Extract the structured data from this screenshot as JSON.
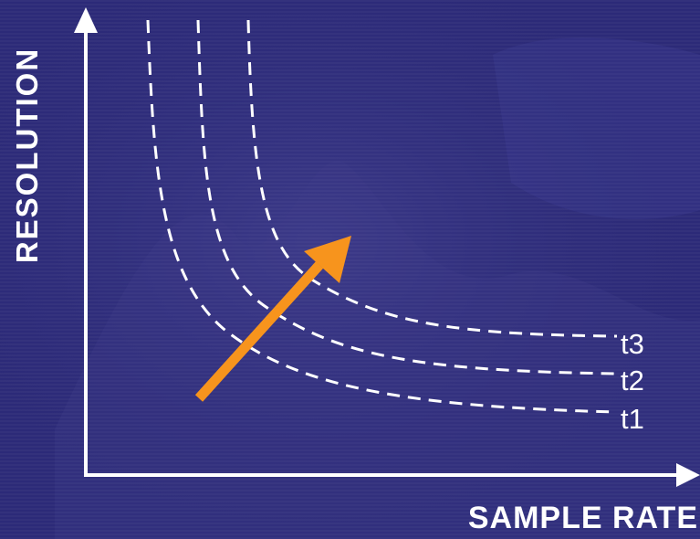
{
  "axes": {
    "y_label": "RESOLUTION",
    "x_label": "SAMPLE RATE"
  },
  "curves": [
    {
      "label": "t3"
    },
    {
      "label": "t2"
    },
    {
      "label": "t1"
    }
  ],
  "colors": {
    "background": "#2c2a78",
    "axes": "#ffffff",
    "curves": "#ffffff",
    "arrow": "#f7941d"
  }
}
